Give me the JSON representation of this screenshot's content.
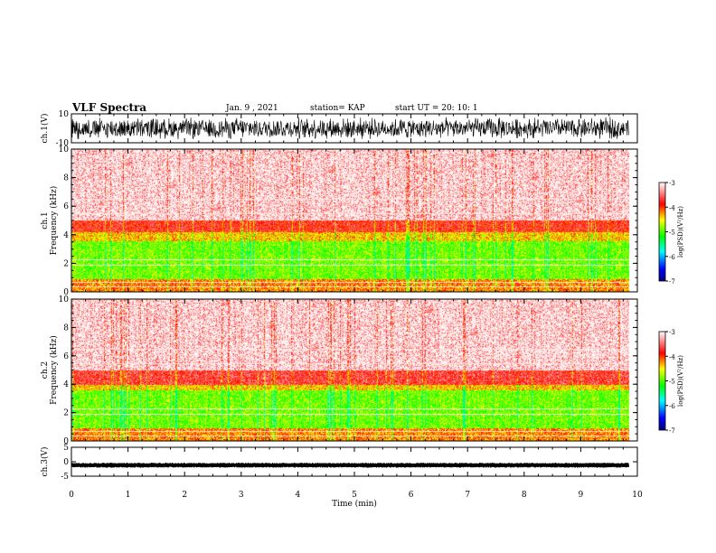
{
  "header": {
    "title": "VLF Spectra",
    "date": "Jan. 9 , 2021",
    "station": "station= KAP",
    "start": "start  UT =   20: 10: 1"
  },
  "chart_data": [
    {
      "type": "line",
      "name": "ch1-waveform",
      "ylabel": "ch.1(V)",
      "ylim": [
        -10,
        10
      ],
      "yticks": [
        "10",
        "-10"
      ],
      "xlim": [
        0,
        10
      ],
      "color": "#000000"
    },
    {
      "type": "heatmap",
      "name": "ch1-spectrogram",
      "ylabel": "ch.1\nFrequency (kHz)",
      "ylim": [
        0,
        10
      ],
      "yticks": [
        "0",
        "2",
        "4",
        "6",
        "8",
        "10"
      ],
      "xlim": [
        0,
        10
      ],
      "colorbar": {
        "label": "log(PSD)(V²/Hz)",
        "range": [
          -7,
          -3
        ],
        "ticks": [
          "-3",
          "-4",
          "-5",
          "-6",
          "-7"
        ]
      }
    },
    {
      "type": "heatmap",
      "name": "ch2-spectrogram",
      "ylabel": "ch.2\nFrequency (kHz)",
      "ylim": [
        0,
        10
      ],
      "yticks": [
        "0",
        "2",
        "4",
        "6",
        "8",
        "10"
      ],
      "xlim": [
        0,
        10
      ],
      "colorbar": {
        "label": "log(PSD)(V²/Hz)",
        "range": [
          -7,
          -3
        ],
        "ticks": [
          "-3",
          "-4",
          "-5",
          "-6",
          "-7"
        ]
      }
    },
    {
      "type": "line",
      "name": "ch3-waveform",
      "ylabel": "ch.3(V)",
      "ylim": [
        -5,
        5
      ],
      "yticks": [
        "5",
        "0",
        "-5"
      ],
      "xlim": [
        0,
        10
      ],
      "xlabel": "Time (min)",
      "xticks": [
        "0",
        "1",
        "2",
        "3",
        "4",
        "5",
        "6",
        "7",
        "8",
        "9",
        "10"
      ],
      "color": "#000000"
    }
  ],
  "colors": {
    "psd_high": "#ff0000",
    "psd_mid_high": "#ffff00",
    "psd_mid": "#00ff00",
    "psd_low": "#00ffff",
    "psd_min": "#00008b"
  }
}
